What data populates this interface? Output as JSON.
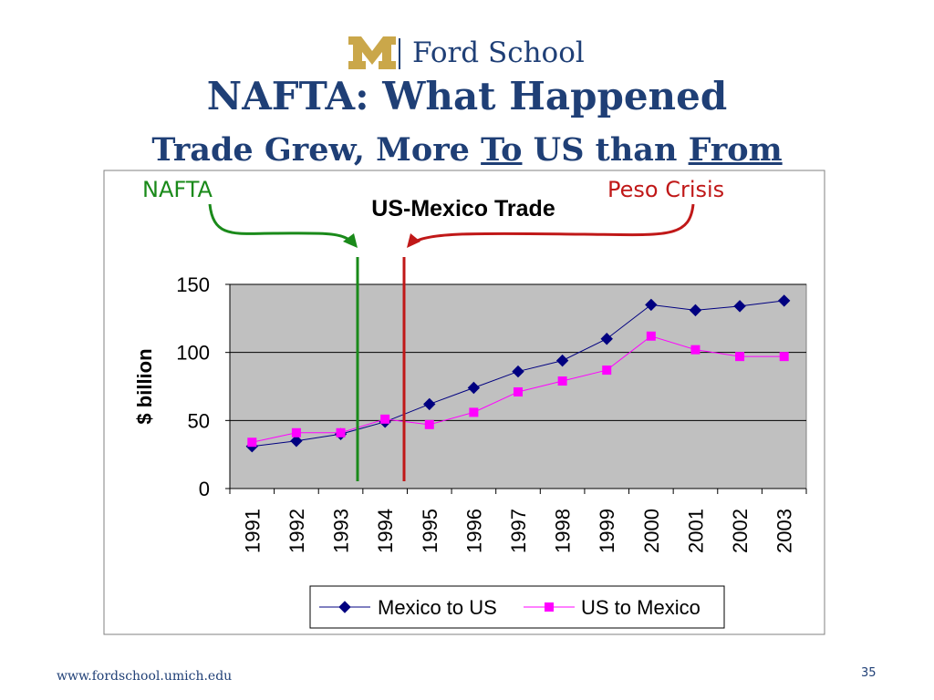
{
  "header": {
    "logo_text": "Ford School",
    "title": "NAFTA: What Happened",
    "subtitle_parts": [
      "Trade Grew, More ",
      "To",
      " US than ",
      "From"
    ]
  },
  "annotations": {
    "nafta_label": "NAFTA",
    "nafta_color": "#1a8a1a",
    "peso_label": "Peso Crisis",
    "peso_color": "#c01818"
  },
  "chart_data": {
    "type": "line",
    "title": "US-Mexico Trade",
    "ylabel": "$ billion",
    "xlabel": "",
    "ylim": [
      0,
      150
    ],
    "yticks": [
      0,
      50,
      100,
      150
    ],
    "categories": [
      "1991",
      "1992",
      "1993",
      "1994",
      "1995",
      "1996",
      "1997",
      "1998",
      "1999",
      "2000",
      "2001",
      "2002",
      "2003"
    ],
    "series": [
      {
        "name": "Mexico to US",
        "color": "#000080",
        "marker": "diamond",
        "values": [
          31,
          35,
          40,
          49,
          62,
          74,
          86,
          94,
          110,
          135,
          131,
          134,
          138
        ]
      },
      {
        "name": "US to Mexico",
        "color": "#ff00ff",
        "marker": "square",
        "values": [
          34,
          41,
          41,
          51,
          47,
          56,
          71,
          79,
          87,
          112,
          102,
          97,
          97
        ]
      }
    ],
    "grid": true,
    "legend": "bottom",
    "plot_bg": "#c0c0c0"
  },
  "footer": {
    "url": "www.fordschool.umich.edu",
    "page": "35"
  }
}
